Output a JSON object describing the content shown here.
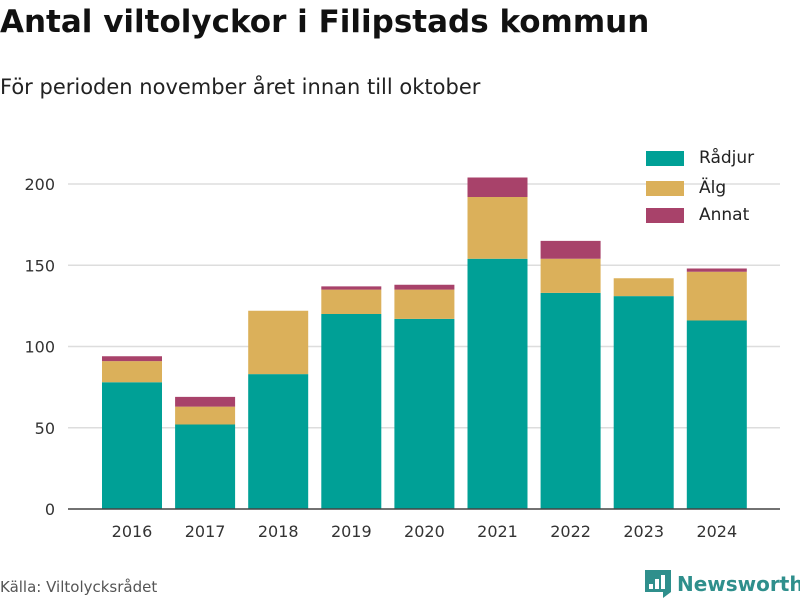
{
  "title": "Antal viltolyckor i Filipstads kommun",
  "subtitle": "För perioden november året innan till oktober",
  "source": "Källa: Viltolycksrådet",
  "brand": "Newsworthy",
  "chart_data": {
    "type": "bar",
    "stacked": true,
    "categories": [
      "2016",
      "2017",
      "2018",
      "2019",
      "2020",
      "2021",
      "2022",
      "2023",
      "2024"
    ],
    "series": [
      {
        "name": "Rådjur",
        "color": "#00a096",
        "values": [
          78,
          52,
          83,
          120,
          117,
          154,
          133,
          131,
          116
        ]
      },
      {
        "name": "Älg",
        "color": "#dbb05a",
        "values": [
          13,
          11,
          39,
          15,
          18,
          38,
          21,
          11,
          30
        ]
      },
      {
        "name": "Annat",
        "color": "#a8426a",
        "values": [
          3,
          6,
          0,
          2,
          3,
          12,
          11,
          0,
          2
        ]
      }
    ],
    "ylim": [
      0,
      210
    ],
    "yticks": [
      0,
      50,
      100,
      150,
      200
    ],
    "grid": true,
    "legend": "top-right"
  }
}
